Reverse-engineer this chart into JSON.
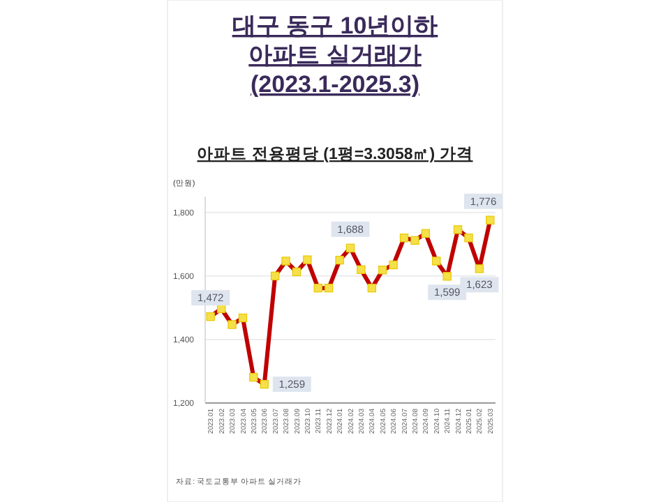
{
  "chart_data": {
    "type": "line",
    "title": "대구 동구 10년이하\n아파트 실거래가\n(2023.1-2025.3)",
    "subtitle": "아파트 전용평당 (1평=3.3058㎡) 가격",
    "ylabel": "(만원)",
    "categories": [
      "2023.01",
      "2023.02",
      "2023.03",
      "2023.04",
      "2023.05",
      "2023.06",
      "2023.07",
      "2023.08",
      "2023.09",
      "2023.10",
      "2023.11",
      "2023.12",
      "2024.01",
      "2024.02",
      "2024.03",
      "2024.04",
      "2024.05",
      "2024.06",
      "2024.07",
      "2024.08",
      "2024.09",
      "2024.10",
      "2024.11",
      "2024.12",
      "2025.01",
      "2025.02",
      "2025.03"
    ],
    "series": [
      {
        "color": "#c00000",
        "values": [
          1472,
          1497,
          1447,
          1468,
          1281,
          1259,
          1600,
          1647,
          1613,
          1651,
          1562,
          1562,
          1650,
          1688,
          1620,
          1562,
          1619,
          1635,
          1720,
          1712,
          1734,
          1647,
          1599,
          1746,
          1720,
          1623,
          1776
        ],
        "value_labels": [
          "1,472",
          null,
          null,
          null,
          null,
          "1,259",
          null,
          null,
          null,
          null,
          null,
          null,
          null,
          "1,688",
          null,
          null,
          null,
          null,
          null,
          null,
          null,
          null,
          "1,599",
          null,
          null,
          "1,623",
          "1,776"
        ]
      }
    ],
    "marker": "square",
    "ylim": [
      1200,
      1850
    ],
    "yticks": [
      {
        "value": 1200,
        "label": "1,200"
      },
      {
        "value": 1400,
        "label": "1,400"
      },
      {
        "value": 1600,
        "label": "1,600"
      },
      {
        "value": 1800,
        "label": "1,800"
      }
    ],
    "grid": "y",
    "annotations": [
      "자료: 국토교통부 아파트 실거래가"
    ]
  }
}
